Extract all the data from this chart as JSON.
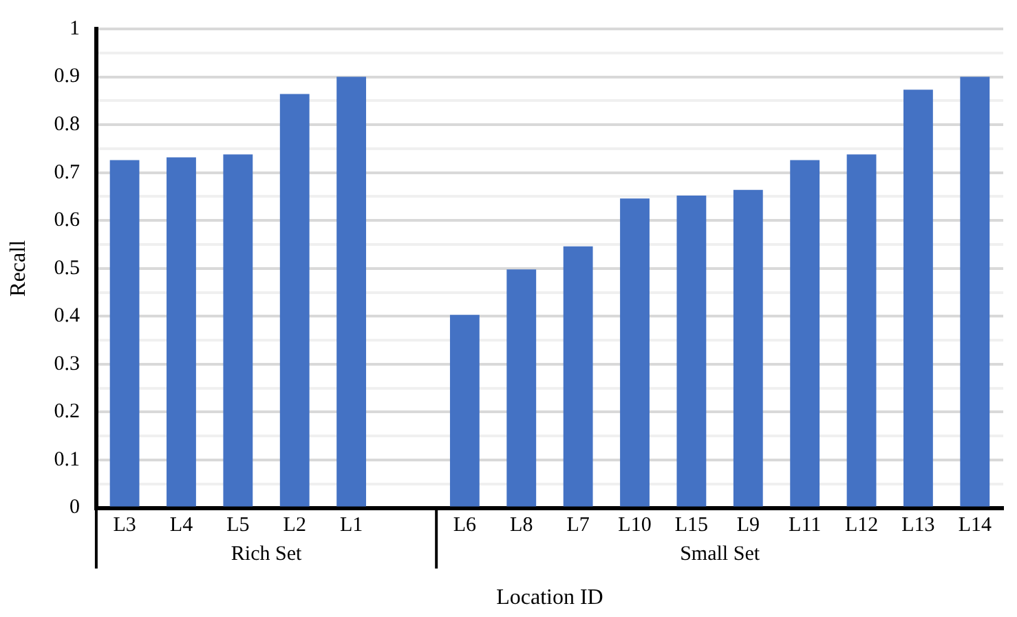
{
  "chart_data": {
    "type": "bar",
    "xlabel": "Location ID",
    "ylabel": "Recall",
    "categories": [
      "L3",
      "L4",
      "L5",
      "L2",
      "L1",
      null,
      "L6",
      "L8",
      "L7",
      "L10",
      "L15",
      "L9",
      "L11",
      "L12",
      "L13",
      "L14"
    ],
    "values": [
      0.726,
      0.732,
      0.738,
      0.864,
      0.9,
      null,
      0.403,
      0.498,
      0.546,
      0.646,
      0.652,
      0.664,
      0.726,
      0.738,
      0.873,
      0.9
    ],
    "color": "#4472c4",
    "ylim": [
      0,
      1
    ],
    "yticks": [
      0,
      {
        "value": 0.05,
        "label": null
      },
      0.1,
      {
        "value": 0.15,
        "label": null
      },
      0.2,
      {
        "value": 0.25,
        "label": null
      },
      0.3,
      {
        "value": 0.35,
        "label": null
      },
      0.4,
      {
        "value": 0.45,
        "label": null
      },
      0.5,
      {
        "value": 0.55,
        "label": null
      },
      0.6,
      {
        "value": 0.65,
        "label": null
      },
      0.7,
      {
        "value": 0.75,
        "label": null
      },
      0.8,
      {
        "value": 0.85,
        "label": null
      },
      0.9,
      {
        "value": 0.95,
        "label": null
      },
      1
    ],
    "annotations": [
      "Rich Set",
      "Small Set"
    ],
    "grid": "y",
    "legend": false
  }
}
